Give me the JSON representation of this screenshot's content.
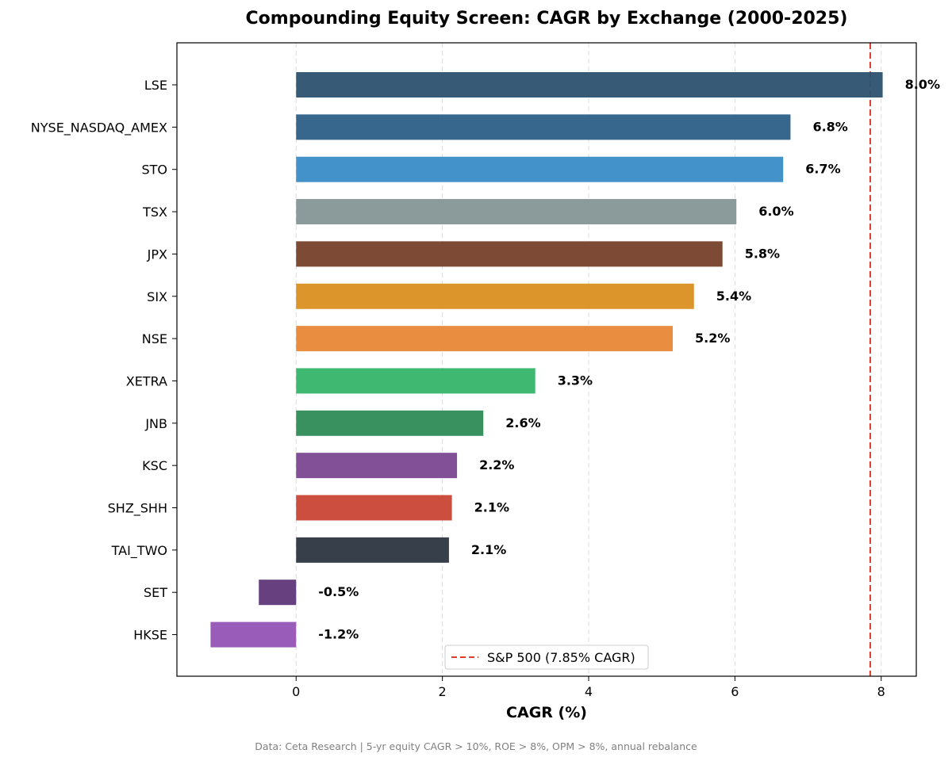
{
  "chart_data": {
    "type": "bar",
    "orientation": "horizontal",
    "title": "Compounding Equity Screen: CAGR by Exchange (2000-2025)",
    "xlabel": "CAGR (%)",
    "ylabel": "",
    "xlim": [
      -1.63,
      8.48
    ],
    "xticks": [
      0,
      2,
      4,
      6,
      8
    ],
    "grid": "x-dashed",
    "categories": [
      "LSE",
      "NYSE_NASDAQ_AMEX",
      "STO",
      "TSX",
      "JPX",
      "SIX",
      "NSE",
      "XETRA",
      "JNB",
      "KSC",
      "SHZ_SHH",
      "TAI_TWO",
      "SET",
      "HKSE"
    ],
    "values": [
      8.02,
      6.76,
      6.66,
      6.02,
      5.83,
      5.44,
      5.15,
      3.27,
      2.56,
      2.2,
      2.13,
      2.09,
      -0.51,
      -1.17
    ],
    "value_labels": [
      "8.0%",
      "6.8%",
      "6.7%",
      "6.0%",
      "5.8%",
      "5.4%",
      "5.2%",
      "3.3%",
      "2.6%",
      "2.2%",
      "2.1%",
      "2.1%",
      "-0.5%",
      "-1.2%"
    ],
    "colors": [
      "#2c5270",
      "#2c5f87",
      "#3a8cc7",
      "#859596",
      "#76402b",
      "#d98f20",
      "#e88737",
      "#35b46a",
      "#2e8b57",
      "#7a4790",
      "#c84434",
      "#2c3640",
      "#5f3678",
      "#9453b5"
    ],
    "reference_line": {
      "value": 7.85,
      "label": "S&P 500 (7.85% CAGR)",
      "color": "#e03b2b",
      "style": "dashed"
    },
    "legend_position": "bottom-center",
    "footnote": "Data: Ceta Research | 5-yr equity CAGR > 10%, ROE > 8%, OPM > 8%, annual rebalance"
  }
}
